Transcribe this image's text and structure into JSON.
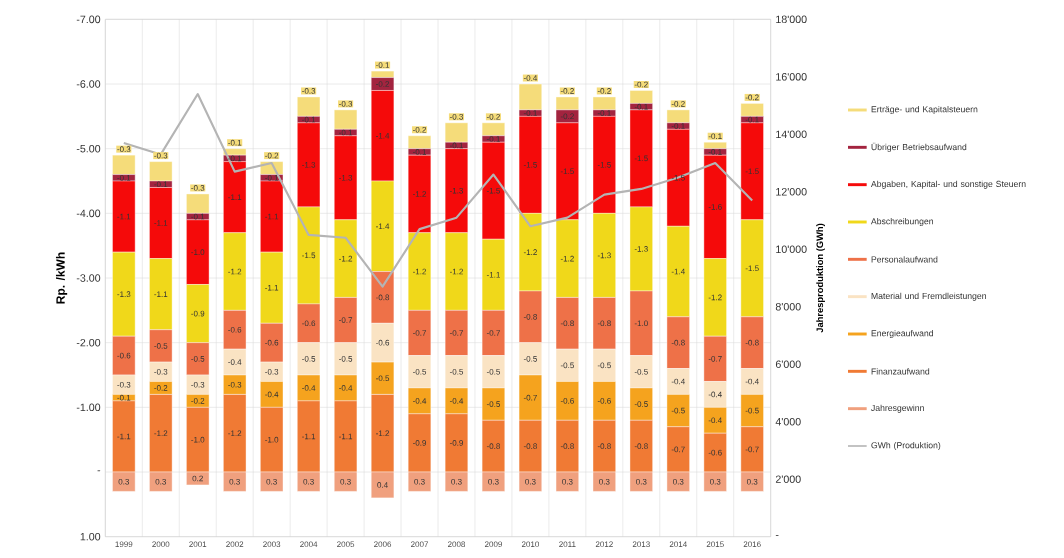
{
  "chart_data": {
    "type": "bar",
    "stacked": true,
    "grid": true,
    "legend": "right",
    "ylabel": "Rp. /kWh",
    "y2label": "Jahresproduktion (GWh)",
    "categories": [
      "1999",
      "2000",
      "2001",
      "2002",
      "2003",
      "2004",
      "2005",
      "2006",
      "2007",
      "2008",
      "2009",
      "2010",
      "2011",
      "2012",
      "2013",
      "2014",
      "2015",
      "2016"
    ],
    "ylim": [
      1,
      -7
    ],
    "yticks": [
      {
        "value": -7,
        "label": "-7.00"
      },
      {
        "value": -6,
        "label": "-6.00"
      },
      {
        "value": -5,
        "label": "-5.00"
      },
      {
        "value": -4,
        "label": "-4.00"
      },
      {
        "value": -3,
        "label": "-3.00"
      },
      {
        "value": -2,
        "label": "-2.00"
      },
      {
        "value": -1,
        "label": "-1.00"
      },
      {
        "value": 0,
        "label": "-"
      },
      {
        "value": 1,
        "label": "1.00"
      }
    ],
    "y2lim": [
      0,
      18000
    ],
    "y2ticks": [
      {
        "value": 0,
        "label": "-"
      },
      {
        "value": 2000,
        "label": "2'000"
      },
      {
        "value": 4000,
        "label": "4'000"
      },
      {
        "value": 6000,
        "label": "6'000"
      },
      {
        "value": 8000,
        "label": "8'000"
      },
      {
        "value": 10000,
        "label": "10'000"
      },
      {
        "value": 12000,
        "label": "12'000"
      },
      {
        "value": 14000,
        "label": "14'000"
      },
      {
        "value": 16000,
        "label": "16'000"
      },
      {
        "value": 18000,
        "label": "18'000"
      }
    ],
    "series": [
      {
        "name": "Jahresgewinn",
        "color": "#f0a07e",
        "values": [
          0.3,
          0.3,
          0.2,
          0.3,
          0.3,
          0.3,
          0.3,
          0.4,
          0.3,
          0.3,
          0.3,
          0.3,
          0.3,
          0.3,
          0.3,
          0.3,
          0.3,
          0.3
        ],
        "value_labels": [
          "0.3",
          "0.3",
          "0.2",
          "0.3",
          "0.3",
          "0.3",
          "0.3",
          "0.4",
          "0.3",
          "0.3",
          "0.3",
          "0.3",
          "0.3",
          "0.3",
          "0.3",
          "0.3",
          "0.3",
          "0.3"
        ]
      },
      {
        "name": "Finanzaufwand",
        "color": "#f07a34",
        "values": [
          -1.1,
          -1.2,
          -1.0,
          -1.2,
          -1.0,
          -1.1,
          -1.1,
          -1.2,
          -0.9,
          -0.9,
          -0.8,
          -0.8,
          -0.8,
          -0.8,
          -0.8,
          -0.7,
          -0.6,
          -0.7
        ],
        "value_labels": [
          "-1.1",
          "-1.2",
          "-1.0",
          "-1.2",
          "-1.0",
          "-1.1",
          "-1.1",
          "-1.2",
          "-0.9",
          "-0.9",
          "-0.8",
          "-0.8",
          "-0.8",
          "-0.8",
          "-0.8",
          "-0.7",
          "-0.6",
          "-0.7"
        ]
      },
      {
        "name": "Energieaufwand",
        "color": "#f5a31e",
        "values": [
          -0.1,
          -0.2,
          -0.2,
          -0.3,
          -0.4,
          -0.4,
          -0.4,
          -0.5,
          -0.4,
          -0.4,
          -0.5,
          -0.7,
          -0.6,
          -0.6,
          -0.5,
          -0.5,
          -0.4,
          -0.5
        ],
        "value_labels": [
          "-0.1",
          "-0.2",
          "-0.2",
          "-0.3",
          "-0.4",
          "-0.4",
          "-0.4",
          "-0.5",
          "-0.4",
          "-0.4",
          "-0.5",
          "-0.7",
          "-0.6",
          "-0.6",
          "-0.5",
          "-0.5",
          "-0.4",
          "-0.5"
        ]
      },
      {
        "name": "Material und Fremdleistungen",
        "color": "#fae3c3",
        "values": [
          -0.3,
          -0.3,
          -0.3,
          -0.4,
          -0.3,
          -0.5,
          -0.5,
          -0.6,
          -0.5,
          -0.5,
          -0.5,
          -0.5,
          -0.5,
          -0.5,
          -0.5,
          -0.4,
          -0.4,
          -0.4
        ],
        "value_labels": [
          "-0.3",
          "-0.3",
          "-0.3",
          "-0.4",
          "-0.3",
          "-0.5",
          "-0.5",
          "-0.6",
          "-0.5",
          "-0.5",
          "-0.5",
          "-0.5",
          "-0.5",
          "-0.5",
          "-0.5",
          "-0.4",
          "-0.4",
          "-0.4"
        ]
      },
      {
        "name": "Personalaufwand",
        "color": "#ee7148",
        "values": [
          -0.6,
          -0.5,
          -0.5,
          -0.6,
          -0.6,
          -0.6,
          -0.7,
          -0.8,
          -0.7,
          -0.7,
          -0.7,
          -0.8,
          -0.8,
          -0.8,
          -1.0,
          -0.8,
          -0.7,
          -0.8
        ],
        "value_labels": [
          "-0.6",
          "-0.5",
          "-0.5",
          "-0.6",
          "-0.6",
          "-0.6",
          "-0.7",
          "-0.8",
          "-0.7",
          "-0.7",
          "-0.7",
          "-0.8",
          "-0.8",
          "-0.8",
          "-1.0",
          "-0.8",
          "-0.7",
          "-0.8"
        ]
      },
      {
        "name": "Abschreibungen",
        "color": "#f0d81a",
        "values": [
          -1.3,
          -1.1,
          -0.9,
          -1.2,
          -1.1,
          -1.5,
          -1.2,
          -1.4,
          -1.2,
          -1.2,
          -1.1,
          -1.2,
          -1.2,
          -1.3,
          -1.3,
          -1.4,
          -1.2,
          -1.5
        ],
        "value_labels": [
          "-1.3",
          "-1.1",
          "-0.9",
          "-1.2",
          "-1.1",
          "-1.5",
          "-1.2",
          "-1.4",
          "-1.2",
          "-1.2",
          "-1.1",
          "-1.2",
          "-1.2",
          "-1.3",
          "-1.3",
          "-1.4",
          "-1.2",
          "-1.5"
        ]
      },
      {
        "name": "Abgaben, Kapital- und sonstige Steuern",
        "color": "#f50a0a",
        "values": [
          -1.1,
          -1.1,
          -1.0,
          -1.1,
          -1.1,
          -1.3,
          -1.3,
          -1.4,
          -1.2,
          -1.3,
          -1.5,
          -1.5,
          -1.5,
          -1.5,
          -1.5,
          -1.5,
          -1.6,
          -1.5
        ],
        "value_labels": [
          "-1.1",
          "-1.1",
          "-1.0",
          "-1.1",
          "-1.1",
          "-1.3",
          "-1.3",
          "-1.4",
          "-1.2",
          "-1.3",
          "-1.5",
          "-1.5",
          "-1.5",
          "-1.5",
          "-1.5",
          "-1.5",
          "-1.6",
          "-1.5"
        ]
      },
      {
        "name": "Übriger Betriebsaufwand",
        "color": "#a3243f",
        "values": [
          -0.1,
          -0.1,
          -0.1,
          -0.1,
          -0.1,
          -0.1,
          -0.1,
          -0.2,
          -0.1,
          -0.1,
          -0.1,
          -0.1,
          -0.2,
          -0.1,
          -0.1,
          -0.1,
          -0.1,
          -0.1
        ],
        "value_labels": [
          "-0.1",
          "-0.1",
          "-0.1",
          "-0.1",
          "-0.1",
          "-0.1",
          "-0.1",
          "-0.2",
          "-0.1",
          "-0.1",
          "-0.1",
          "-0.1",
          "-0.2",
          "-0.1",
          "-0.1",
          "-0.1",
          "-0.1",
          "-0.1"
        ]
      },
      {
        "name": "Erträge- und Kapitalsteuern",
        "color": "#f5dc7a",
        "values": [
          -0.3,
          -0.3,
          -0.3,
          -0.1,
          -0.2,
          -0.3,
          -0.3,
          -0.1,
          -0.2,
          -0.3,
          -0.2,
          -0.4,
          -0.2,
          -0.2,
          -0.2,
          -0.2,
          -0.1,
          -0.2
        ],
        "value_labels": [
          "-0.3",
          "-0.3",
          "-0.3",
          "-0.1",
          "-0.2",
          "-0.3",
          "-0.3",
          "-0.1",
          "-0.2",
          "-0.3",
          "-0.2",
          "-0.4",
          "-0.2",
          "-0.2",
          "-0.2",
          "-0.2",
          "-0.1",
          "-0.2"
        ]
      },
      {
        "name": "GWh (Produktion)",
        "type": "line",
        "axis": "y2",
        "color": "#b4b4b4",
        "values": [
          13700,
          13300,
          15400,
          12700,
          13000,
          10500,
          10400,
          8700,
          10700,
          11100,
          12600,
          10800,
          11100,
          11900,
          12100,
          12500,
          13000,
          11700
        ]
      }
    ]
  }
}
